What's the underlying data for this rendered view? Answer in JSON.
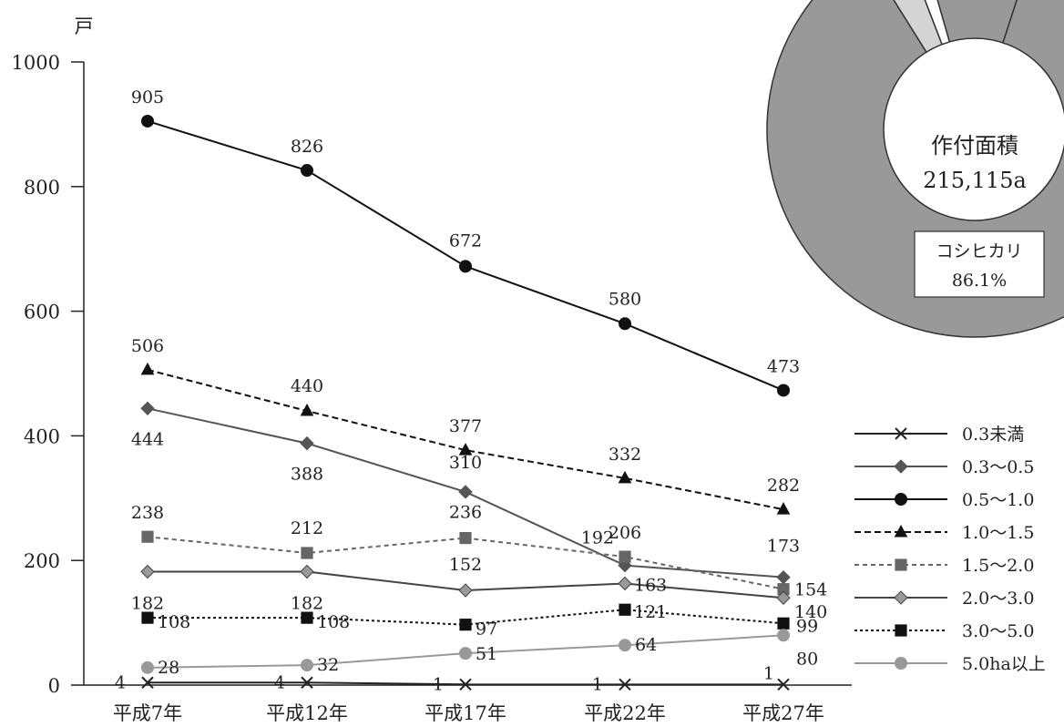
{
  "chart_data": {
    "type": "line",
    "y_unit": "戸",
    "categories": [
      "平成7年",
      "平成12年",
      "平成17年",
      "平成22年",
      "平成27年"
    ],
    "ylim": [
      0,
      1000
    ],
    "yticks": [
      "0",
      "200",
      "400",
      "600",
      "800",
      "1000"
    ],
    "grid": false,
    "legend_position": "right",
    "series": [
      {
        "name": "0.3未満",
        "values": [
          4,
          4,
          1,
          1,
          1
        ],
        "marker": "x",
        "dash": "solid",
        "color": "#222222"
      },
      {
        "name": "0.3～0.5",
        "values": [
          444,
          388,
          310,
          192,
          173
        ],
        "marker": "diamond",
        "dash": "solid",
        "color": "#555555"
      },
      {
        "name": "0.5～1.0",
        "values": [
          905,
          826,
          672,
          580,
          473
        ],
        "marker": "circle",
        "dash": "solid",
        "color": "#111111"
      },
      {
        "name": "1.0～1.5",
        "values": [
          506,
          440,
          377,
          332,
          282
        ],
        "marker": "triangle",
        "dash": "dashed",
        "color": "#111111"
      },
      {
        "name": "1.5～2.0",
        "values": [
          238,
          212,
          236,
          206,
          154
        ],
        "marker": "square",
        "dash": "dashed-thin",
        "color": "#666666"
      },
      {
        "name": "2.0～3.0",
        "values": [
          182,
          182,
          152,
          163,
          140
        ],
        "marker": "diamond",
        "dash": "solid",
        "color": "#444444",
        "marker_fill": "#999999"
      },
      {
        "name": "3.0～5.0",
        "values": [
          108,
          108,
          97,
          121,
          99
        ],
        "marker": "square",
        "dash": "dotted",
        "color": "#111111"
      },
      {
        "name": "5.0ha以上",
        "values": [
          28,
          32,
          51,
          64,
          80
        ],
        "marker": "circle",
        "dash": "solid",
        "color": "#999999"
      }
    ],
    "inset_pie": {
      "center_text": [
        "作付面積",
        "215,115a"
      ],
      "slice_label": [
        "コシヒカリ",
        "86.1%"
      ],
      "main_share": 86.1
    }
  }
}
